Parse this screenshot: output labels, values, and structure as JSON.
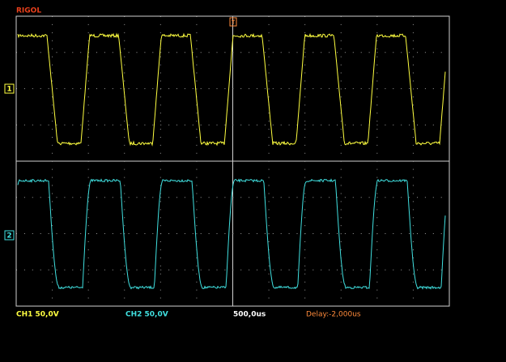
{
  "header": {
    "brand": "RIGOL"
  },
  "channels": [
    {
      "marker": "1",
      "label": "CH1 50,0V"
    },
    {
      "marker": "2",
      "label": "CH2 50,0V"
    }
  ],
  "status": {
    "timebase": "500,0us",
    "delay": "Delay:-2,000us"
  }
}
